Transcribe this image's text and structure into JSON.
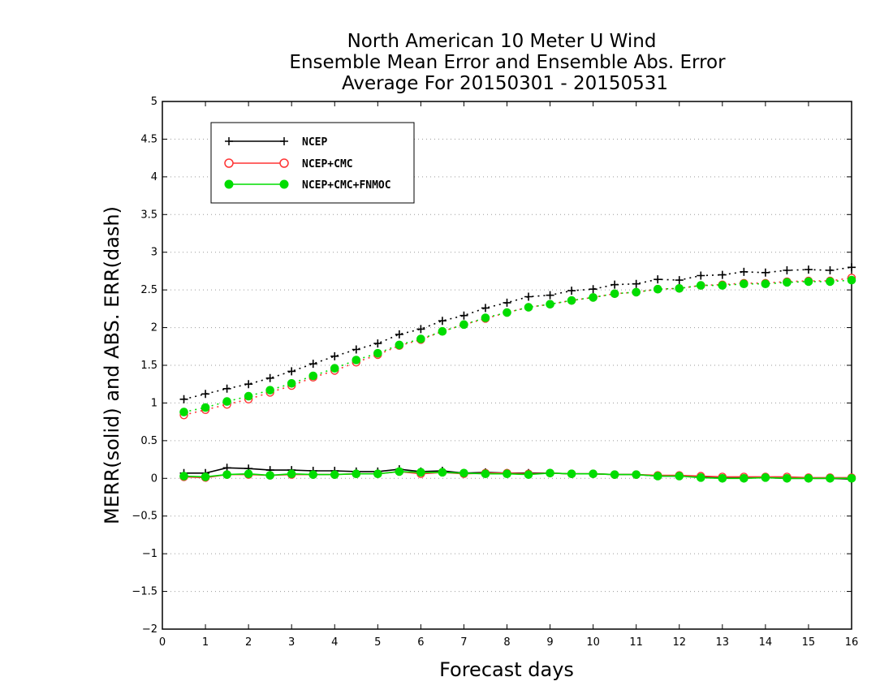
{
  "chart_data": {
    "type": "line",
    "title_lines": [
      "North American 10 Meter U Wind",
      "Ensemble Mean Error and Ensemble Abs. Error",
      "Average For 20150301 - 20150531"
    ],
    "xlabel": "Forecast days",
    "ylabel": "MERR(solid) and ABS. ERR(dash)",
    "xlim": [
      0,
      16
    ],
    "ylim": [
      -2,
      5
    ],
    "x_ticks": [
      "0",
      "1",
      "2",
      "3",
      "4",
      "5",
      "6",
      "7",
      "8",
      "9",
      "10",
      "11",
      "12",
      "13",
      "14",
      "15",
      "16"
    ],
    "y_ticks": [
      "−2",
      "−1.5",
      "−1",
      "−0.5",
      "0",
      "0.5",
      "1",
      "1.5",
      "2",
      "2.5",
      "3",
      "3.5",
      "4",
      "4.5",
      "5"
    ],
    "grid": "horizontal dotted",
    "legend_position": "top-left",
    "x": [
      0.5,
      1,
      1.5,
      2,
      2.5,
      3,
      3.5,
      4,
      4.5,
      5,
      5.5,
      6,
      6.5,
      7,
      7.5,
      8,
      8.5,
      9,
      9.5,
      10,
      10.5,
      11,
      11.5,
      12,
      12.5,
      13,
      13.5,
      14,
      14.5,
      15,
      15.5,
      16
    ],
    "series": [
      {
        "name": "NCEP",
        "color": "#000000",
        "marker": "plus",
        "merr": [
          0.07,
          0.07,
          0.14,
          0.13,
          0.11,
          0.11,
          0.1,
          0.1,
          0.09,
          0.09,
          0.12,
          0.09,
          0.1,
          0.07,
          0.08,
          0.07,
          0.07,
          0.07,
          0.06,
          0.06,
          0.05,
          0.05,
          0.03,
          0.03,
          0.02,
          0.01,
          0.01,
          0.01,
          0.0,
          0.0,
          0.0,
          -0.01
        ],
        "abs_err": [
          1.05,
          1.12,
          1.19,
          1.25,
          1.33,
          1.42,
          1.52,
          1.62,
          1.71,
          1.79,
          1.91,
          1.98,
          2.09,
          2.16,
          2.26,
          2.33,
          2.41,
          2.43,
          2.49,
          2.51,
          2.57,
          2.58,
          2.64,
          2.63,
          2.69,
          2.7,
          2.74,
          2.73,
          2.76,
          2.77,
          2.76,
          2.8
        ]
      },
      {
        "name": "NCEP+CMC",
        "color": "#ff3333",
        "marker": "open-circle",
        "merr": [
          0.02,
          0.01,
          0.05,
          0.05,
          0.04,
          0.05,
          0.05,
          0.05,
          0.06,
          0.06,
          0.09,
          0.06,
          0.08,
          0.06,
          0.07,
          0.07,
          0.06,
          0.07,
          0.06,
          0.06,
          0.05,
          0.05,
          0.04,
          0.04,
          0.03,
          0.02,
          0.02,
          0.02,
          0.02,
          0.01,
          0.01,
          0.01
        ],
        "abs_err": [
          0.84,
          0.91,
          0.98,
          1.05,
          1.14,
          1.23,
          1.34,
          1.43,
          1.54,
          1.64,
          1.76,
          1.84,
          1.95,
          2.04,
          2.12,
          2.2,
          2.27,
          2.31,
          2.36,
          2.4,
          2.45,
          2.47,
          2.51,
          2.52,
          2.56,
          2.57,
          2.59,
          2.59,
          2.61,
          2.62,
          2.62,
          2.66
        ]
      },
      {
        "name": "NCEP+CMC+FNMOC",
        "color": "#00dd00",
        "marker": "filled-circle",
        "merr": [
          0.03,
          0.02,
          0.05,
          0.06,
          0.04,
          0.06,
          0.05,
          0.05,
          0.06,
          0.06,
          0.09,
          0.08,
          0.08,
          0.07,
          0.06,
          0.06,
          0.05,
          0.07,
          0.06,
          0.06,
          0.05,
          0.05,
          0.03,
          0.03,
          0.01,
          0.0,
          0.0,
          0.01,
          0.0,
          0.0,
          0.0,
          0.0
        ],
        "abs_err": [
          0.88,
          0.94,
          1.02,
          1.09,
          1.17,
          1.26,
          1.36,
          1.46,
          1.57,
          1.66,
          1.77,
          1.85,
          1.95,
          2.04,
          2.13,
          2.2,
          2.27,
          2.31,
          2.36,
          2.4,
          2.45,
          2.47,
          2.51,
          2.52,
          2.56,
          2.56,
          2.58,
          2.58,
          2.6,
          2.61,
          2.61,
          2.63
        ]
      }
    ]
  }
}
